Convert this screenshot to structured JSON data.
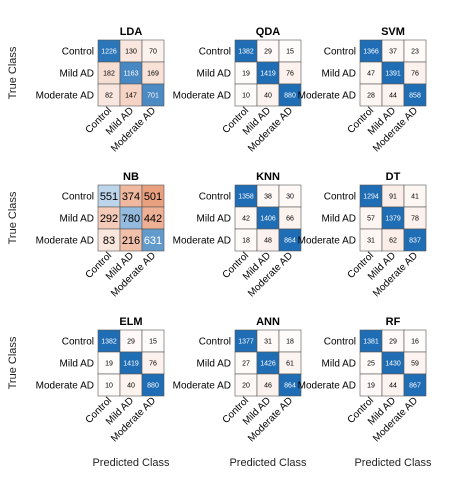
{
  "figure": {
    "x_axis_title": "Predicted Class",
    "y_axis_title": "True Class",
    "colors": {
      "high": "#1f6db5",
      "mid": "#5a9bd4",
      "low": "#fbeee6",
      "positive_off": "#e9a07f",
      "grid": "#555555"
    }
  },
  "chart_data": [
    {
      "type": "heatmap",
      "title": "LDA",
      "row_labels": [
        "Control",
        "Mild AD",
        "Moderate AD"
      ],
      "col_labels": [
        "Control",
        "Mild AD",
        "Moderate AD"
      ],
      "values": [
        [
          1226,
          130,
          70
        ],
        [
          182,
          1163,
          169
        ],
        [
          82,
          147,
          701
        ]
      ]
    },
    {
      "type": "heatmap",
      "title": "QDA",
      "row_labels": [
        "Control",
        "Mild AD",
        "Moderate AD"
      ],
      "col_labels": [
        "Control",
        "Mild AD",
        "Moderate AD"
      ],
      "values": [
        [
          1382,
          29,
          15
        ],
        [
          19,
          1419,
          76
        ],
        [
          10,
          40,
          880
        ]
      ]
    },
    {
      "type": "heatmap",
      "title": "SVM",
      "row_labels": [
        "Control",
        "Mild AD",
        "Moderate AD"
      ],
      "col_labels": [
        "Control",
        "Mild AD",
        "Moderate AD"
      ],
      "values": [
        [
          1366,
          37,
          23
        ],
        [
          47,
          1391,
          76
        ],
        [
          28,
          44,
          858
        ]
      ]
    },
    {
      "type": "heatmap",
      "title": "NB",
      "row_labels": [
        "Control",
        "Mild AD",
        "Moderate AD"
      ],
      "col_labels": [
        "Control",
        "Mild AD",
        "Moderate AD"
      ],
      "values": [
        [
          551,
          374,
          501
        ],
        [
          292,
          780,
          442
        ],
        [
          83,
          216,
          631
        ]
      ]
    },
    {
      "type": "heatmap",
      "title": "KNN",
      "row_labels": [
        "Control",
        "Mild AD",
        "Moderate AD"
      ],
      "col_labels": [
        "Control",
        "Mild AD",
        "Moderate AD"
      ],
      "values": [
        [
          1358,
          38,
          30
        ],
        [
          42,
          1406,
          66
        ],
        [
          18,
          48,
          864
        ]
      ]
    },
    {
      "type": "heatmap",
      "title": "DT",
      "row_labels": [
        "Control",
        "Mild AD",
        "Moderate AD"
      ],
      "col_labels": [
        "Control",
        "Mild AD",
        "Moderate AD"
      ],
      "values": [
        [
          1294,
          91,
          41
        ],
        [
          57,
          1379,
          78
        ],
        [
          31,
          62,
          837
        ]
      ]
    },
    {
      "type": "heatmap",
      "title": "ELM",
      "row_labels": [
        "Control",
        "Mild AD",
        "Moderate AD"
      ],
      "col_labels": [
        "Control",
        "Mild AD",
        "Moderate AD"
      ],
      "values": [
        [
          1382,
          29,
          15
        ],
        [
          19,
          1419,
          76
        ],
        [
          10,
          40,
          880
        ]
      ]
    },
    {
      "type": "heatmap",
      "title": "ANN",
      "row_labels": [
        "Control",
        "Mild AD",
        "Moderate AD"
      ],
      "col_labels": [
        "Control",
        "Mild AD",
        "Moderate AD"
      ],
      "values": [
        [
          1377,
          31,
          18
        ],
        [
          27,
          1426,
          61
        ],
        [
          20,
          46,
          864
        ]
      ]
    },
    {
      "type": "heatmap",
      "title": "RF",
      "row_labels": [
        "Control",
        "Mild AD",
        "Moderate AD"
      ],
      "col_labels": [
        "Control",
        "Mild AD",
        "Moderate AD"
      ],
      "values": [
        [
          1381,
          29,
          16
        ],
        [
          25,
          1430,
          59
        ],
        [
          19,
          44,
          867
        ]
      ]
    }
  ]
}
